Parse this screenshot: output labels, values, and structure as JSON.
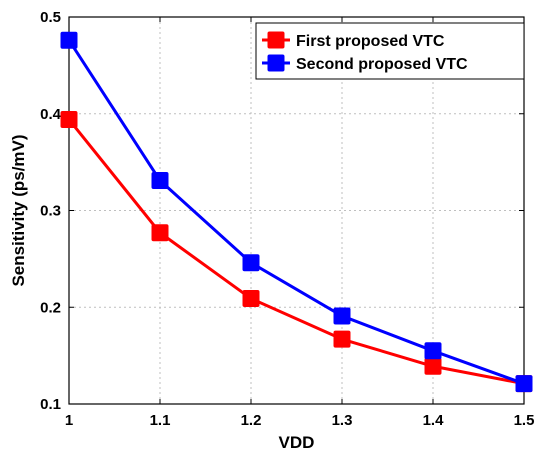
{
  "chart_data": {
    "type": "line",
    "title": "",
    "xlabel": "VDD",
    "ylabel": "Sensitivity (ps/mV)",
    "x": [
      1,
      1.1,
      1.2,
      1.3,
      1.4,
      1.5
    ],
    "xlim": [
      1,
      1.5
    ],
    "ylim": [
      0.1,
      0.5
    ],
    "x_ticks": [
      "1",
      "1.1",
      "1.2",
      "1.3",
      "1.4",
      "1.5"
    ],
    "y_ticks": [
      "0.1",
      "0.2",
      "0.3",
      "0.4",
      "0.5"
    ],
    "grid": true,
    "legend_position": "top-right",
    "series": [
      {
        "name": "First proposed VTC",
        "color": "#ff0000",
        "marker": "square",
        "values": [
          0.394,
          0.277,
          0.209,
          0.167,
          0.139,
          0.121
        ]
      },
      {
        "name": "Second proposed VTC",
        "color": "#0000ff",
        "marker": "square",
        "values": [
          0.476,
          0.331,
          0.246,
          0.191,
          0.155,
          0.121
        ]
      }
    ]
  }
}
